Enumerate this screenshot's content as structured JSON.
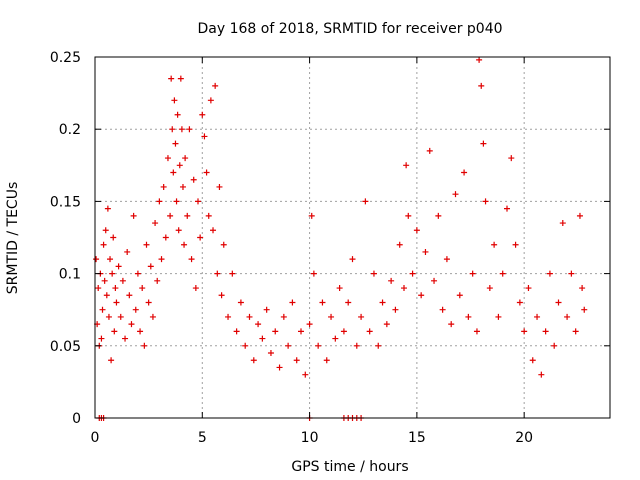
{
  "chart_data": {
    "type": "scatter",
    "title": "Day 168 of 2018, SRMTID for receiver p040",
    "xlabel": "GPS time / hours",
    "ylabel": "SRMTID / TECUs",
    "xlim": [
      0,
      24
    ],
    "ylim": [
      0,
      0.25
    ],
    "xticks": [
      0,
      5,
      10,
      15,
      20
    ],
    "xtick_labels": [
      "0",
      "5",
      "10",
      "15",
      "20"
    ],
    "yticks": [
      0,
      0.05,
      0.1,
      0.15,
      0.2,
      0.25
    ],
    "ytick_labels": [
      "0",
      "0.05",
      "0.1",
      "0.15",
      "0.2",
      "0.25"
    ],
    "grid": true,
    "marker": "plus",
    "color": "#e00000",
    "series": [
      {
        "name": "SRMTID",
        "points": [
          [
            0.05,
            0.11
          ],
          [
            0.1,
            0.065
          ],
          [
            0.15,
            0.09
          ],
          [
            0.2,
            0.05
          ],
          [
            0.25,
            0.1
          ],
          [
            0.3,
            0.055
          ],
          [
            0.35,
            0.075
          ],
          [
            0.4,
            0.12
          ],
          [
            0.45,
            0.095
          ],
          [
            0.5,
            0.13
          ],
          [
            0.55,
            0.085
          ],
          [
            0.6,
            0.145
          ],
          [
            0.65,
            0.07
          ],
          [
            0.7,
            0.11
          ],
          [
            0.75,
            0.04
          ],
          [
            0.8,
            0.1
          ],
          [
            0.85,
            0.125
          ],
          [
            0.9,
            0.06
          ],
          [
            0.95,
            0.09
          ],
          [
            1.0,
            0.08
          ],
          [
            1.1,
            0.105
          ],
          [
            1.2,
            0.07
          ],
          [
            1.3,
            0.095
          ],
          [
            1.4,
            0.055
          ],
          [
            1.5,
            0.115
          ],
          [
            1.6,
            0.085
          ],
          [
            1.7,
            0.065
          ],
          [
            1.8,
            0.14
          ],
          [
            1.9,
            0.075
          ],
          [
            2.0,
            0.1
          ],
          [
            2.1,
            0.06
          ],
          [
            2.2,
            0.09
          ],
          [
            2.3,
            0.05
          ],
          [
            2.4,
            0.12
          ],
          [
            2.5,
            0.08
          ],
          [
            2.6,
            0.105
          ],
          [
            2.7,
            0.07
          ],
          [
            2.8,
            0.135
          ],
          [
            2.9,
            0.095
          ],
          [
            3.0,
            0.15
          ],
          [
            3.1,
            0.11
          ],
          [
            3.2,
            0.16
          ],
          [
            3.3,
            0.125
          ],
          [
            3.4,
            0.18
          ],
          [
            3.5,
            0.14
          ],
          [
            3.55,
            0.235
          ],
          [
            3.6,
            0.2
          ],
          [
            3.65,
            0.17
          ],
          [
            3.7,
            0.22
          ],
          [
            3.75,
            0.19
          ],
          [
            3.8,
            0.15
          ],
          [
            3.85,
            0.21
          ],
          [
            3.9,
            0.13
          ],
          [
            3.95,
            0.175
          ],
          [
            4.0,
            0.235
          ],
          [
            4.05,
            0.2
          ],
          [
            4.1,
            0.16
          ],
          [
            4.15,
            0.12
          ],
          [
            4.2,
            0.18
          ],
          [
            4.3,
            0.14
          ],
          [
            4.4,
            0.2
          ],
          [
            4.5,
            0.11
          ],
          [
            4.6,
            0.165
          ],
          [
            4.7,
            0.09
          ],
          [
            4.8,
            0.15
          ],
          [
            4.9,
            0.125
          ],
          [
            5.0,
            0.21
          ],
          [
            5.1,
            0.195
          ],
          [
            5.2,
            0.17
          ],
          [
            5.3,
            0.14
          ],
          [
            5.4,
            0.22
          ],
          [
            5.5,
            0.13
          ],
          [
            5.6,
            0.23
          ],
          [
            5.7,
            0.1
          ],
          [
            5.8,
            0.16
          ],
          [
            5.9,
            0.085
          ],
          [
            6.0,
            0.12
          ],
          [
            6.2,
            0.07
          ],
          [
            6.4,
            0.1
          ],
          [
            6.6,
            0.06
          ],
          [
            6.8,
            0.08
          ],
          [
            7.0,
            0.05
          ],
          [
            7.2,
            0.07
          ],
          [
            7.4,
            0.04
          ],
          [
            7.6,
            0.065
          ],
          [
            7.8,
            0.055
          ],
          [
            8.0,
            0.075
          ],
          [
            8.2,
            0.045
          ],
          [
            8.4,
            0.06
          ],
          [
            8.6,
            0.035
          ],
          [
            8.8,
            0.07
          ],
          [
            9.0,
            0.05
          ],
          [
            9.2,
            0.08
          ],
          [
            9.4,
            0.04
          ],
          [
            9.6,
            0.06
          ],
          [
            9.8,
            0.03
          ],
          [
            10.0,
            0.065
          ],
          [
            10.1,
            0.14
          ],
          [
            10.2,
            0.1
          ],
          [
            10.4,
            0.05
          ],
          [
            10.6,
            0.08
          ],
          [
            10.8,
            0.04
          ],
          [
            11.0,
            0.07
          ],
          [
            11.2,
            0.055
          ],
          [
            11.4,
            0.09
          ],
          [
            11.6,
            0.06
          ],
          [
            11.8,
            0.08
          ],
          [
            12.0,
            0.11
          ],
          [
            12.2,
            0.05
          ],
          [
            12.4,
            0.07
          ],
          [
            12.6,
            0.15
          ],
          [
            12.8,
            0.06
          ],
          [
            13.0,
            0.1
          ],
          [
            13.2,
            0.05
          ],
          [
            13.4,
            0.08
          ],
          [
            13.6,
            0.065
          ],
          [
            13.8,
            0.095
          ],
          [
            14.0,
            0.075
          ],
          [
            14.2,
            0.12
          ],
          [
            14.4,
            0.09
          ],
          [
            14.5,
            0.175
          ],
          [
            14.6,
            0.14
          ],
          [
            14.8,
            0.1
          ],
          [
            15.0,
            0.13
          ],
          [
            15.2,
            0.085
          ],
          [
            15.4,
            0.115
          ],
          [
            15.6,
            0.185
          ],
          [
            15.8,
            0.095
          ],
          [
            16.0,
            0.14
          ],
          [
            16.2,
            0.075
          ],
          [
            16.4,
            0.11
          ],
          [
            16.6,
            0.065
          ],
          [
            16.8,
            0.155
          ],
          [
            17.0,
            0.085
          ],
          [
            17.2,
            0.17
          ],
          [
            17.4,
            0.07
          ],
          [
            17.6,
            0.1
          ],
          [
            17.8,
            0.06
          ],
          [
            17.9,
            0.248
          ],
          [
            18.0,
            0.23
          ],
          [
            18.1,
            0.19
          ],
          [
            18.2,
            0.15
          ],
          [
            18.4,
            0.09
          ],
          [
            18.6,
            0.12
          ],
          [
            18.8,
            0.07
          ],
          [
            19.0,
            0.1
          ],
          [
            19.2,
            0.145
          ],
          [
            19.4,
            0.18
          ],
          [
            19.6,
            0.12
          ],
          [
            19.8,
            0.08
          ],
          [
            20.0,
            0.06
          ],
          [
            20.2,
            0.09
          ],
          [
            20.4,
            0.04
          ],
          [
            20.6,
            0.07
          ],
          [
            20.8,
            0.03
          ],
          [
            21.0,
            0.06
          ],
          [
            21.2,
            0.1
          ],
          [
            21.4,
            0.05
          ],
          [
            21.6,
            0.08
          ],
          [
            21.8,
            0.135
          ],
          [
            22.0,
            0.07
          ],
          [
            22.2,
            0.1
          ],
          [
            22.4,
            0.06
          ],
          [
            22.6,
            0.14
          ],
          [
            22.7,
            0.09
          ],
          [
            22.8,
            0.075
          ],
          [
            0.2,
            0.0
          ],
          [
            0.3,
            0.0
          ],
          [
            0.4,
            0.0
          ],
          [
            10.0,
            0.0
          ],
          [
            11.6,
            0.0
          ],
          [
            11.8,
            0.0
          ],
          [
            12.0,
            0.0
          ],
          [
            12.2,
            0.0
          ],
          [
            12.4,
            0.0
          ]
        ]
      }
    ]
  }
}
